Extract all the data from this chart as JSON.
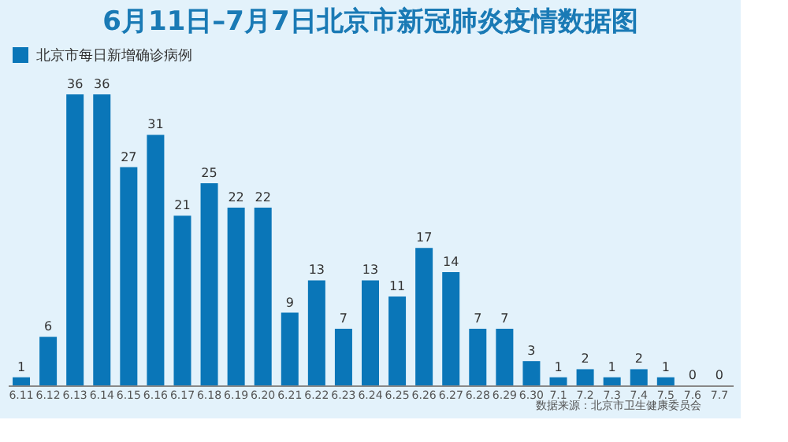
{
  "chart_data": {
    "type": "bar",
    "title": "6月11日–7月7日北京市新冠肺炎疫情数据图",
    "categories": [
      "6.11",
      "6.12",
      "6.13",
      "6.14",
      "6.15",
      "6.16",
      "6.17",
      "6.18",
      "6.19",
      "6.20",
      "6.21",
      "6.22",
      "6.23",
      "6.24",
      "6.25",
      "6.26",
      "6.27",
      "6.28",
      "6.29",
      "6.30",
      "7.1",
      "7.2",
      "7.3",
      "7.4",
      "7.5",
      "7.6",
      "7.7"
    ],
    "series": [
      {
        "name": "北京市每日新增确诊病例",
        "color": "#0a76b8",
        "values": [
          1,
          6,
          36,
          36,
          27,
          31,
          21,
          25,
          22,
          22,
          9,
          13,
          7,
          13,
          11,
          17,
          14,
          7,
          7,
          3,
          1,
          2,
          1,
          2,
          1,
          0,
          0
        ]
      }
    ],
    "data_labels": true,
    "legend": "top",
    "annotations": [
      "数据来源：北京市卫生健康委员会"
    ]
  }
}
